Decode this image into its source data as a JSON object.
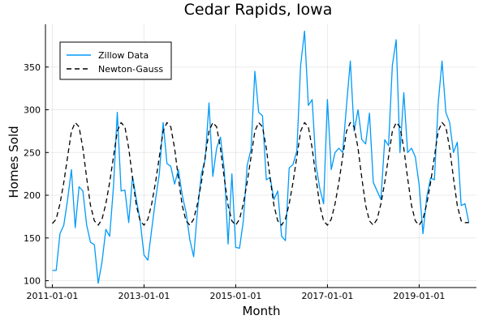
{
  "chart_data": {
    "type": "line",
    "title": "Cedar Rapids, Iowa",
    "xlabel": "Month",
    "ylabel": "Homes Sold",
    "xlim": [
      2010.85,
      2020.25
    ],
    "ylim": [
      92,
      400
    ],
    "grid": true,
    "legend_position": "top-left",
    "x_ticks": [
      {
        "value": 2011,
        "label": "2011-01-01"
      },
      {
        "value": 2013,
        "label": "2013-01-01"
      },
      {
        "value": 2015,
        "label": "2015-01-01"
      },
      {
        "value": 2017,
        "label": "2017-01-01"
      },
      {
        "value": 2019,
        "label": "2019-01-01"
      }
    ],
    "y_ticks": [
      {
        "value": 100,
        "label": "100"
      },
      {
        "value": 150,
        "label": "150"
      },
      {
        "value": 200,
        "label": "200"
      },
      {
        "value": 250,
        "label": "250"
      },
      {
        "value": 300,
        "label": "300"
      },
      {
        "value": 350,
        "label": "350"
      }
    ],
    "series": [
      {
        "name": "Zillow Data",
        "style": "solid",
        "color": "#009AFA",
        "start_year": 2011.0,
        "step": 0.08333,
        "values": [
          112,
          112,
          155,
          165,
          195,
          230,
          162,
          210,
          205,
          165,
          145,
          142,
          97,
          122,
          160,
          152,
          210,
          297,
          205,
          206,
          168,
          222,
          195,
          170,
          130,
          124,
          160,
          195,
          225,
          285,
          237,
          234,
          213,
          230,
          200,
          180,
          148,
          128,
          182,
          225,
          242,
          308,
          222,
          255,
          268,
          230,
          143,
          225,
          139,
          138,
          170,
          235,
          254,
          345,
          297,
          293,
          218,
          221,
          195,
          205,
          152,
          147,
          232,
          236,
          252,
          352,
          392,
          305,
          312,
          235,
          208,
          190,
          312,
          230,
          250,
          255,
          250,
          305,
          357,
          275,
          300,
          265,
          260,
          296,
          215,
          205,
          195,
          265,
          258,
          352,
          382,
          250,
          320,
          250,
          255,
          245,
          212,
          155,
          198,
          220,
          218,
          308,
          357,
          297,
          285,
          250,
          262,
          188,
          190,
          168
        ]
      },
      {
        "name": "Newton-Gauss",
        "style": "dashed",
        "color": "#000000",
        "start_year": 2011.0,
        "step": 0.08333,
        "values": [
          167,
          172,
          190,
          215,
          245,
          275,
          285,
          280,
          255,
          220,
          188,
          170,
          165,
          172,
          190,
          215,
          245,
          275,
          285,
          280,
          255,
          220,
          188,
          170,
          165,
          172,
          190,
          215,
          245,
          275,
          285,
          280,
          255,
          220,
          188,
          170,
          165,
          172,
          190,
          215,
          245,
          275,
          285,
          280,
          255,
          220,
          188,
          170,
          165,
          172,
          190,
          215,
          245,
          275,
          285,
          280,
          255,
          220,
          188,
          170,
          165,
          172,
          190,
          215,
          245,
          275,
          285,
          280,
          255,
          220,
          188,
          170,
          165,
          172,
          190,
          215,
          245,
          275,
          285,
          280,
          255,
          220,
          188,
          170,
          165,
          172,
          190,
          215,
          245,
          275,
          285,
          280,
          255,
          220,
          188,
          170,
          165,
          172,
          190,
          215,
          245,
          275,
          285,
          280,
          255,
          220,
          188,
          170,
          168,
          168
        ]
      }
    ]
  }
}
